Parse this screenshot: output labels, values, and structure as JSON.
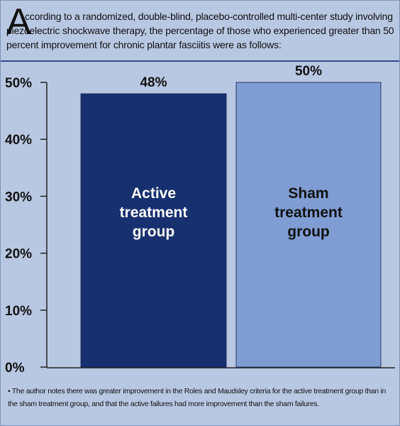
{
  "intro": {
    "dropcap": "A",
    "text": "ccording to a randomized, double-blind, placebo-controlled multi-center study involving piezoelectric shockwave therapy, the percentage of those who experienced greater than 50 percent improvement for chronic plantar fasciitis were as follows:"
  },
  "chart_data": {
    "type": "bar",
    "categories": [
      "Active treatment group",
      "Sham treatment group"
    ],
    "values": [
      48,
      50
    ],
    "value_labels": [
      "48%",
      "50%"
    ],
    "ylim": [
      0,
      50
    ],
    "yticks": [
      "0%",
      "10%",
      "20%",
      "30%",
      "40%",
      "50%"
    ],
    "ytick_values": [
      0,
      10,
      20,
      30,
      40,
      50
    ],
    "label_lines": [
      [
        "Active",
        "treatment",
        "group"
      ],
      [
        "Sham",
        "treatment",
        "group"
      ]
    ],
    "colors": [
      "#17306f",
      "#7f9dd2"
    ],
    "label_color": "#ffffff",
    "bar_label_text_colors": [
      "#ffffff",
      "#111111"
    ],
    "grid": false,
    "legend": "none"
  },
  "footnote": "• The author notes there was greater improvement in the Roles and Maudsley criteria for the active treatment group than in the sham treatment group, and that the active failures had more improvement than the sham failures."
}
